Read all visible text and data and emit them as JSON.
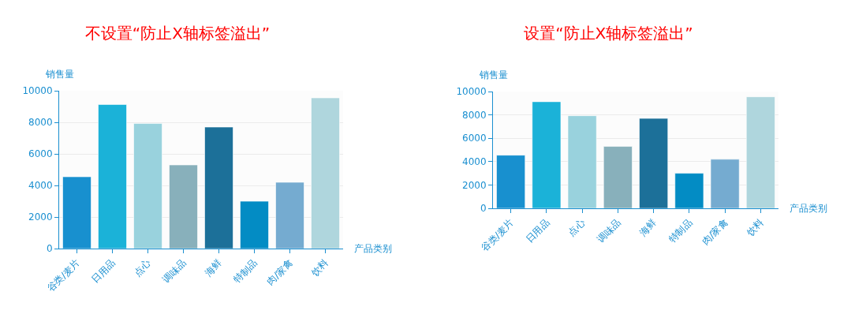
{
  "chart_data": [
    {
      "type": "bar",
      "title": "不设置“防止X轴标签溢出”",
      "xlabel": "产品类别",
      "ylabel": "销售量",
      "categories": [
        "谷类/麦片",
        "日用品",
        "点心",
        "调味品",
        "海鲜",
        "特制品",
        "肉/家禽",
        "饮料"
      ],
      "values": [
        4550,
        9130,
        7930,
        5300,
        7700,
        3000,
        4200,
        9550
      ],
      "colors": [
        "#1890cf",
        "#1bb2d8",
        "#99d2dd",
        "#88b0bb",
        "#1c7099",
        "#038cc4",
        "#75abd0",
        "#afd6dd"
      ],
      "ylim": [
        0,
        10000
      ],
      "yticks": [
        0,
        2000,
        4000,
        6000,
        8000,
        10000
      ],
      "grid": "y"
    },
    {
      "type": "bar",
      "title": "设置“防止X轴标签溢出”",
      "xlabel": "产品类别",
      "ylabel": "销售量",
      "categories": [
        "谷类/麦片",
        "日用品",
        "点心",
        "调味品",
        "海鲜",
        "特制品",
        "肉/家禽",
        "饮料"
      ],
      "values": [
        4550,
        9130,
        7930,
        5300,
        7700,
        3000,
        4200,
        9550
      ],
      "colors": [
        "#1890cf",
        "#1bb2d8",
        "#99d2dd",
        "#88b0bb",
        "#1c7099",
        "#038cc4",
        "#75abd0",
        "#afd6dd"
      ],
      "ylim": [
        0,
        10000
      ],
      "yticks": [
        0,
        2000,
        4000,
        6000,
        8000,
        10000
      ],
      "grid": "y"
    }
  ]
}
